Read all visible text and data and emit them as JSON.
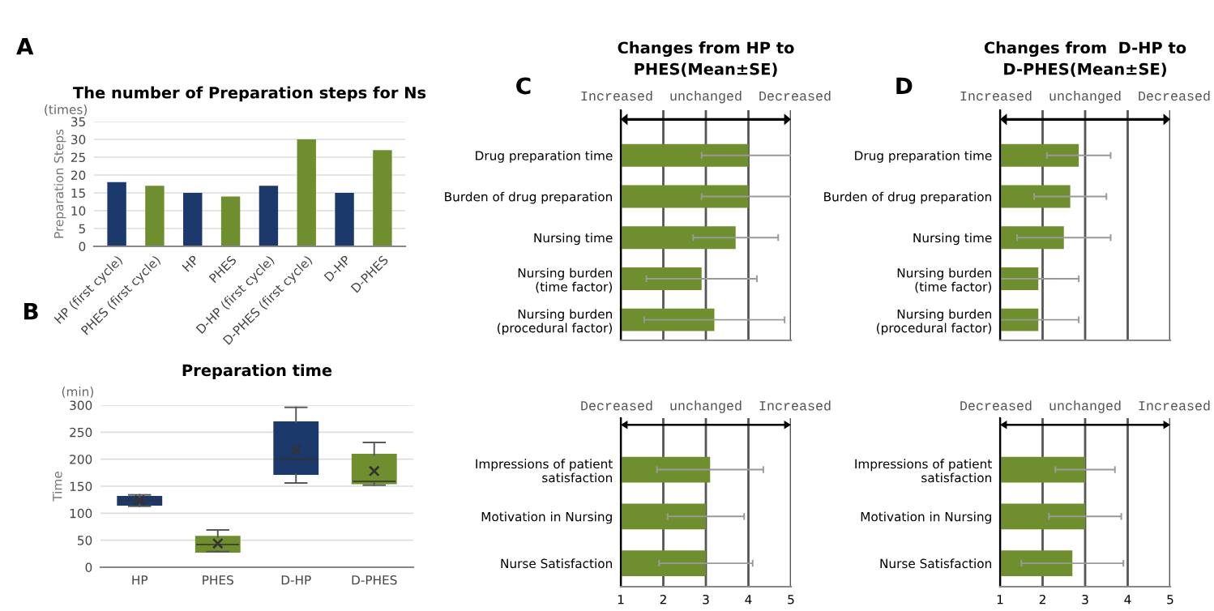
{
  "chart_data": [
    {
      "type": "bar",
      "title": "The number of Preparation steps for Ns",
      "ylabel": "Preparation Steps",
      "annotations": [
        "A",
        "(times)"
      ],
      "categories": [
        "HP (first cycle)",
        "PHES (first cycle)",
        "HP",
        "PHES",
        "D-HP (first cycle)",
        "D-PHES (first cycle)",
        "D-HP",
        "D-PHES"
      ],
      "values": [
        18,
        17,
        15,
        14,
        17,
        30,
        15,
        27
      ],
      "colors": [
        "#1b3a6b",
        "#6f8f2f",
        "#1b3a6b",
        "#6f8f2f",
        "#1b3a6b",
        "#6f8f2f",
        "#1b3a6b",
        "#6f8f2f"
      ],
      "ylim": [
        0,
        35
      ],
      "yticks": [
        0,
        5,
        10,
        15,
        20,
        25,
        30,
        35
      ],
      "grid": "y"
    },
    {
      "type": "box",
      "title": "Preparation time",
      "ylabel": "Time",
      "annotations": [
        "B",
        "(min)"
      ],
      "categories": [
        "HP",
        "PHES",
        "D-HP",
        "D-PHES"
      ],
      "boxes": [
        {
          "low": 113,
          "q1": 116,
          "median": 124,
          "q3": 130,
          "high": 134,
          "mean": 124
        },
        {
          "low": 29,
          "q1": 29,
          "median": 42,
          "q3": 56,
          "high": 69,
          "mean": 44
        },
        {
          "low": 156,
          "q1": 173,
          "median": 200,
          "q3": 268,
          "high": 296,
          "mean": 217
        },
        {
          "low": 152,
          "q1": 156,
          "median": 159,
          "q3": 208,
          "high": 231,
          "mean": 178
        }
      ],
      "colors": [
        "#1b3a6b",
        "#6f8f2f",
        "#1b3a6b",
        "#6f8f2f"
      ],
      "ylim": [
        0,
        300
      ],
      "yticks": [
        0,
        50,
        100,
        150,
        200,
        250,
        300
      ],
      "grid": "y"
    },
    {
      "type": "bar",
      "orientation": "horizontal",
      "title": "Changes from HP to\nPHES(Mean±SE)",
      "subtitle": "Increased  unchanged  Decreased",
      "annotations": [
        "C"
      ],
      "categories": [
        "Drug preparation time",
        "Burden of drug preparation",
        "Nursing time",
        "Nursing burden\n(time factor)",
        "Nursing burden\n(procedural factor)"
      ],
      "values": [
        4.0,
        4.0,
        3.7,
        2.9,
        3.2
      ],
      "errors": [
        1.1,
        1.1,
        1.0,
        1.3,
        1.65
      ],
      "color": "#6f8f2f",
      "xlim": [
        1,
        5
      ],
      "xticks": [
        1,
        2,
        3,
        4,
        5
      ],
      "tick_labels": "y",
      "grid": "x"
    },
    {
      "type": "bar",
      "orientation": "horizontal",
      "subtitle": "Decreased  unchanged  Increased",
      "categories": [
        "Impressions of patient\nsatisfaction",
        "Motivation in Nursing",
        "Nurse Satisfaction"
      ],
      "values": [
        3.1,
        3.0,
        3.0
      ],
      "errors": [
        1.25,
        0.9,
        1.1
      ],
      "color": "#6f8f2f",
      "xlim": [
        1,
        5
      ],
      "xticks": [
        1,
        2,
        3,
        4,
        5
      ],
      "grid": "x"
    },
    {
      "type": "bar",
      "orientation": "horizontal",
      "title": "Changes from  D-HP to\nD-PHES(Mean±SE)",
      "subtitle": "Increased  unchanged  Decreased",
      "annotations": [
        "D"
      ],
      "categories": [
        "Drug preparation time",
        "Burden of drug preparation",
        "Nursing time",
        "Nursing burden\n(time factor)",
        "Nursing burden\n(procedural factor)"
      ],
      "values": [
        2.85,
        2.65,
        2.5,
        1.9,
        1.9
      ],
      "errors": [
        0.75,
        0.85,
        1.1,
        0.95,
        0.95
      ],
      "color": "#6f8f2f",
      "xlim": [
        1,
        5
      ],
      "xticks": [
        1,
        2,
        3,
        4,
        5
      ],
      "tick_labels": "y",
      "grid": "x"
    },
    {
      "type": "bar",
      "orientation": "horizontal",
      "subtitle": "Decreased  unchanged  Increased",
      "categories": [
        "Impressions of patient\nsatisfaction",
        "Motivation in Nursing",
        "Nurse Satisfaction"
      ],
      "values": [
        3.0,
        3.0,
        2.7
      ],
      "errors": [
        0.7,
        0.85,
        1.2
      ],
      "color": "#6f8f2f",
      "xlim": [
        1,
        5
      ],
      "xticks": [
        1,
        2,
        3,
        4,
        5
      ],
      "grid": "x"
    }
  ]
}
